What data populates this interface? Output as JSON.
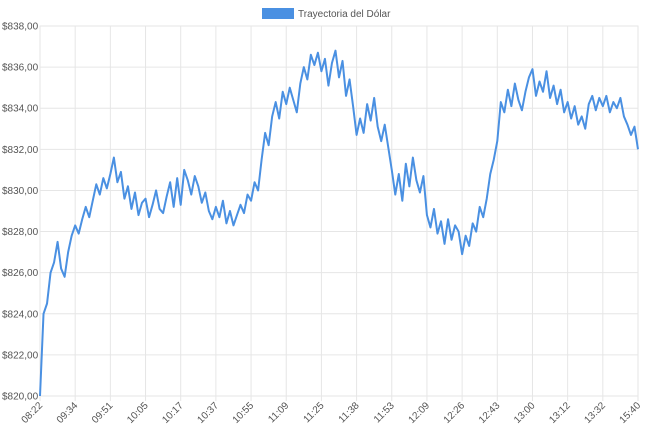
{
  "chart_data": {
    "type": "line",
    "categories": [
      "08:22",
      null,
      null,
      null,
      null,
      null,
      null,
      null,
      null,
      null,
      "09:34",
      null,
      null,
      null,
      null,
      null,
      null,
      null,
      null,
      null,
      "09:51",
      null,
      null,
      null,
      null,
      null,
      null,
      null,
      null,
      null,
      "10:05",
      null,
      null,
      null,
      null,
      null,
      null,
      null,
      null,
      null,
      "10:17",
      null,
      null,
      null,
      null,
      null,
      null,
      null,
      null,
      null,
      "10:37",
      null,
      null,
      null,
      null,
      null,
      null,
      null,
      null,
      null,
      "10:55",
      null,
      null,
      null,
      null,
      null,
      null,
      null,
      null,
      null,
      "11:09",
      null,
      null,
      null,
      null,
      null,
      null,
      null,
      null,
      null,
      "11:25",
      null,
      null,
      null,
      null,
      null,
      null,
      null,
      null,
      null,
      "11:38",
      null,
      null,
      null,
      null,
      null,
      null,
      null,
      null,
      null,
      "11:53",
      null,
      null,
      null,
      null,
      null,
      null,
      null,
      null,
      null,
      "12:09",
      null,
      null,
      null,
      null,
      null,
      null,
      null,
      null,
      null,
      "12:26",
      null,
      null,
      null,
      null,
      null,
      null,
      null,
      null,
      null,
      "12:43",
      null,
      null,
      null,
      null,
      null,
      null,
      null,
      null,
      null,
      "13:00",
      null,
      null,
      null,
      null,
      null,
      null,
      null,
      null,
      null,
      "13:12",
      null,
      null,
      null,
      null,
      null,
      null,
      null,
      null,
      null,
      "13:32",
      null,
      null,
      null,
      null,
      null,
      null,
      null,
      null,
      null,
      "15:40"
    ],
    "series": [
      {
        "name": "Trayectoria del Dólar",
        "color": "#4a90e2",
        "values": [
          820,
          824,
          824.5,
          826,
          826.5,
          827.5,
          826.2,
          825.8,
          827,
          827.8,
          828.3,
          827.9,
          828.6,
          829.2,
          828.7,
          829.5,
          830.3,
          829.8,
          830.6,
          830.1,
          830.8,
          831.6,
          830.4,
          830.9,
          829.6,
          830.2,
          829.1,
          829.9,
          828.8,
          829.4,
          829.6,
          828.7,
          829.3,
          830,
          829.1,
          828.9,
          829.7,
          830.4,
          829.2,
          830.6,
          829.3,
          831,
          830.5,
          829.8,
          830.7,
          830.2,
          829.4,
          829.9,
          829,
          828.6,
          829.2,
          828.7,
          829.5,
          828.4,
          829,
          828.3,
          828.8,
          829.3,
          828.9,
          829.8,
          829.5,
          830.4,
          830,
          831.5,
          832.8,
          832.2,
          833.6,
          834.3,
          833.5,
          834.8,
          834.2,
          835,
          834.4,
          833.8,
          835.2,
          836,
          835.4,
          836.6,
          836.1,
          836.7,
          835.8,
          836.4,
          835.1,
          836.2,
          836.8,
          835.5,
          836.3,
          834.6,
          835.4,
          834.1,
          832.7,
          833.5,
          832.8,
          834.2,
          833.4,
          834.5,
          833.1,
          832.4,
          833.2,
          832.1,
          831,
          829.8,
          830.8,
          829.5,
          831.3,
          830.2,
          831.6,
          830.5,
          829.9,
          830.7,
          828.8,
          828.2,
          829.1,
          827.9,
          828.5,
          827.4,
          828.6,
          827.6,
          828.3,
          828,
          826.9,
          827.8,
          827.3,
          828.4,
          828,
          829.2,
          828.7,
          829.6,
          830.8,
          831.5,
          832.4,
          834.3,
          833.8,
          834.9,
          834.1,
          835.2,
          834.4,
          833.9,
          834.8,
          835.5,
          835.9,
          834.6,
          835.3,
          834.8,
          835.8,
          834.5,
          835.1,
          834.2,
          834.9,
          833.8,
          834.3,
          833.5,
          834.1,
          833.2,
          833.6,
          833,
          834.2,
          834.6,
          833.9,
          834.5,
          834.1,
          834.6,
          833.8,
          834.3,
          834,
          834.5,
          833.6,
          833.2,
          832.7,
          833.1,
          832
        ]
      }
    ],
    "ylim": [
      820,
      838
    ],
    "yticks": [
      {
        "value": 820,
        "label": "$820,00"
      },
      {
        "value": 822,
        "label": "$822,00"
      },
      {
        "value": 824,
        "label": "$824,00"
      },
      {
        "value": 826,
        "label": "$826,00"
      },
      {
        "value": 828,
        "label": "$828,00"
      },
      {
        "value": 830,
        "label": "$830,00"
      },
      {
        "value": 832,
        "label": "$832,00"
      },
      {
        "value": 834,
        "label": "$834,00"
      },
      {
        "value": 836,
        "label": "$836,00"
      },
      {
        "value": 838,
        "label": "$838,00"
      }
    ],
    "grid": true,
    "legend": "top"
  }
}
